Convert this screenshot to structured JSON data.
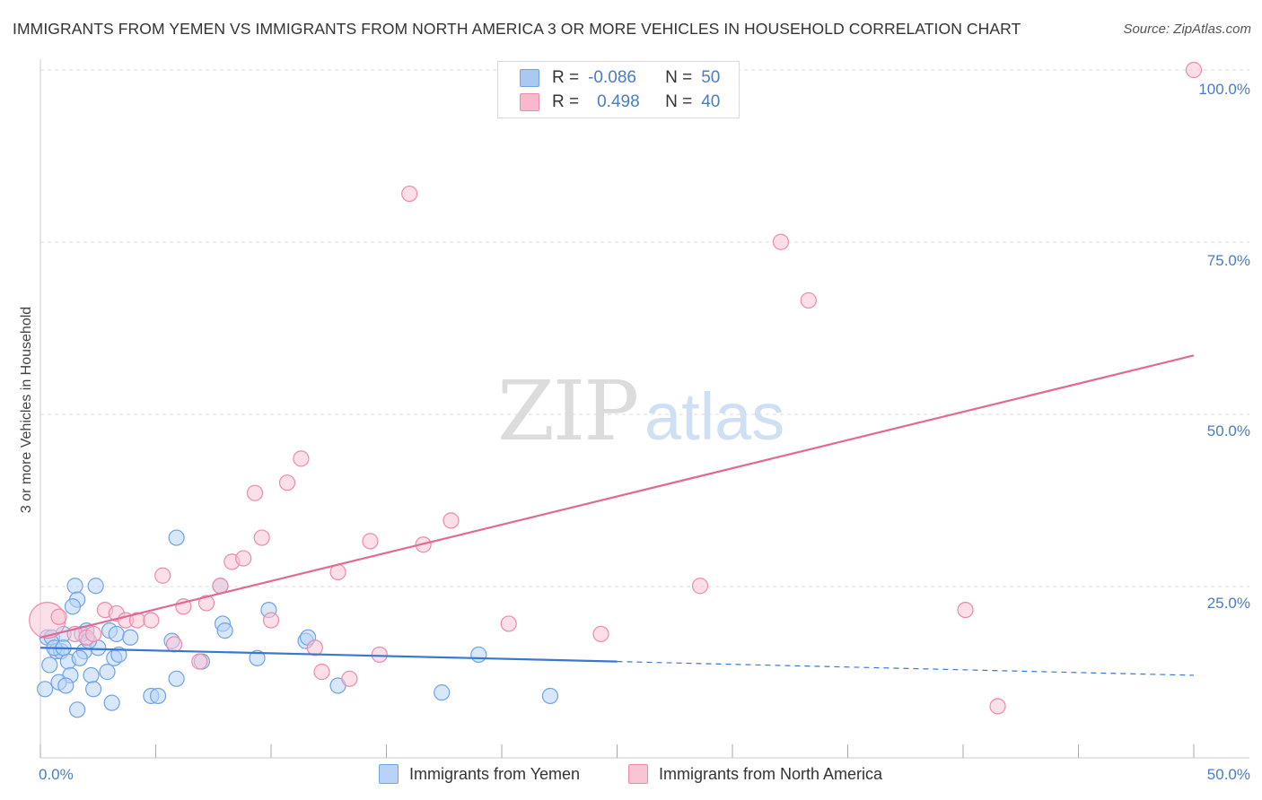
{
  "title": "IMMIGRANTS FROM YEMEN VS IMMIGRANTS FROM NORTH AMERICA 3 OR MORE VEHICLES IN HOUSEHOLD CORRELATION CHART",
  "source": "Source: ZipAtlas.com",
  "watermark": {
    "zip": "ZIP",
    "atlas": "atlas"
  },
  "legend": {
    "rows": [
      {
        "r_label": "R =",
        "r_value": "-0.086",
        "n_label": "N =",
        "n_value": "50",
        "color": "#a9c8f2"
      },
      {
        "r_label": "R =",
        "r_value": "0.498",
        "n_label": "N =",
        "n_value": "40",
        "color": "#f7b9cb"
      }
    ]
  },
  "bottom_legend": {
    "yemen": "Immigrants from Yemen",
    "north_america": "Immigrants from North America"
  },
  "chart_data": {
    "type": "scatter",
    "title": "IMMIGRANTS FROM YEMEN VS IMMIGRANTS FROM NORTH AMERICA 3 OR MORE VEHICLES IN HOUSEHOLD CORRELATION CHART",
    "xlabel": "",
    "ylabel": "3 or more Vehicles in Household",
    "xlim": [
      0,
      50
    ],
    "ylim": [
      0,
      100
    ],
    "x_tick_labels": [
      "0.0%",
      "50.0%"
    ],
    "y_tick_labels": [
      "25.0%",
      "50.0%",
      "75.0%",
      "100.0%"
    ],
    "y_ticks": [
      25,
      50,
      75,
      100
    ],
    "grid": true,
    "series": [
      {
        "name": "Immigrants from Yemen",
        "color": "#6fa3e6",
        "fill": "#b8d3f5",
        "trend": {
          "x": [
            0,
            25
          ],
          "y": [
            16.0,
            14.0
          ],
          "dashed_extension": {
            "x": [
              25,
              50
            ],
            "y": [
              14.0,
              12.0
            ]
          },
          "color": "#3a78d0"
        },
        "points": [
          [
            0.2,
            10.0
          ],
          [
            0.3,
            17.5
          ],
          [
            0.5,
            17.5
          ],
          [
            0.7,
            15.5
          ],
          [
            0.9,
            15.5
          ],
          [
            1.0,
            18.0
          ],
          [
            1.2,
            14.0
          ],
          [
            1.3,
            12.0
          ],
          [
            1.5,
            25.0
          ],
          [
            1.6,
            23.0
          ],
          [
            1.4,
            22.0
          ],
          [
            1.8,
            18.0
          ],
          [
            1.9,
            15.5
          ],
          [
            2.0,
            18.5
          ],
          [
            2.2,
            12.0
          ],
          [
            2.3,
            10.0
          ],
          [
            2.4,
            25.0
          ],
          [
            2.5,
            16.0
          ],
          [
            0.4,
            13.5
          ],
          [
            0.8,
            11.0
          ],
          [
            1.1,
            10.5
          ],
          [
            1.7,
            14.5
          ],
          [
            2.9,
            12.5
          ],
          [
            3.0,
            18.5
          ],
          [
            3.2,
            14.5
          ],
          [
            3.4,
            15.0
          ],
          [
            3.3,
            18.0
          ],
          [
            3.9,
            17.5
          ],
          [
            3.1,
            8.0
          ],
          [
            1.6,
            7.0
          ],
          [
            4.8,
            9.0
          ],
          [
            5.1,
            9.0
          ],
          [
            5.9,
            11.5
          ],
          [
            5.9,
            32.0
          ],
          [
            5.7,
            17.0
          ],
          [
            7.0,
            14.0
          ],
          [
            7.8,
            25.0
          ],
          [
            7.9,
            19.5
          ],
          [
            8.0,
            18.5
          ],
          [
            9.4,
            14.5
          ],
          [
            9.9,
            21.5
          ],
          [
            11.5,
            17.0
          ],
          [
            11.6,
            17.5
          ],
          [
            12.9,
            10.5
          ],
          [
            17.4,
            9.5
          ],
          [
            19.0,
            15.0
          ],
          [
            22.1,
            9.0
          ],
          [
            0.6,
            16.0
          ],
          [
            2.1,
            17.0
          ],
          [
            1.0,
            16.0
          ]
        ]
      },
      {
        "name": "Immigrants from North America",
        "color": "#ee8aa8",
        "fill": "#f9c5d5",
        "trend": {
          "x": [
            0,
            50
          ],
          "y": [
            17.5,
            58.5
          ],
          "color": "#e06a94"
        },
        "points": [
          [
            0.3,
            20.0
          ],
          [
            0.8,
            20.5
          ],
          [
            1.5,
            18.0
          ],
          [
            2.0,
            17.5
          ],
          [
            2.3,
            18.0
          ],
          [
            2.8,
            21.5
          ],
          [
            3.3,
            21.0
          ],
          [
            3.7,
            20.0
          ],
          [
            4.2,
            20.0
          ],
          [
            4.8,
            20.0
          ],
          [
            5.3,
            26.5
          ],
          [
            5.8,
            16.5
          ],
          [
            6.2,
            22.0
          ],
          [
            6.9,
            14.0
          ],
          [
            7.2,
            22.5
          ],
          [
            7.8,
            25.0
          ],
          [
            8.3,
            28.5
          ],
          [
            8.8,
            29.0
          ],
          [
            9.3,
            38.5
          ],
          [
            9.6,
            32.0
          ],
          [
            10.0,
            20.0
          ],
          [
            10.7,
            40.0
          ],
          [
            11.3,
            43.5
          ],
          [
            11.9,
            16.0
          ],
          [
            12.2,
            12.5
          ],
          [
            12.9,
            27.0
          ],
          [
            13.4,
            11.5
          ],
          [
            14.3,
            31.5
          ],
          [
            14.7,
            15.0
          ],
          [
            16.0,
            82.0
          ],
          [
            16.6,
            31.0
          ],
          [
            17.8,
            34.5
          ],
          [
            20.3,
            19.5
          ],
          [
            24.3,
            18.0
          ],
          [
            28.6,
            25.0
          ],
          [
            32.1,
            75.0
          ],
          [
            33.3,
            66.5
          ],
          [
            40.1,
            21.5
          ],
          [
            41.5,
            7.5
          ],
          [
            50.0,
            100.0
          ]
        ]
      }
    ]
  }
}
